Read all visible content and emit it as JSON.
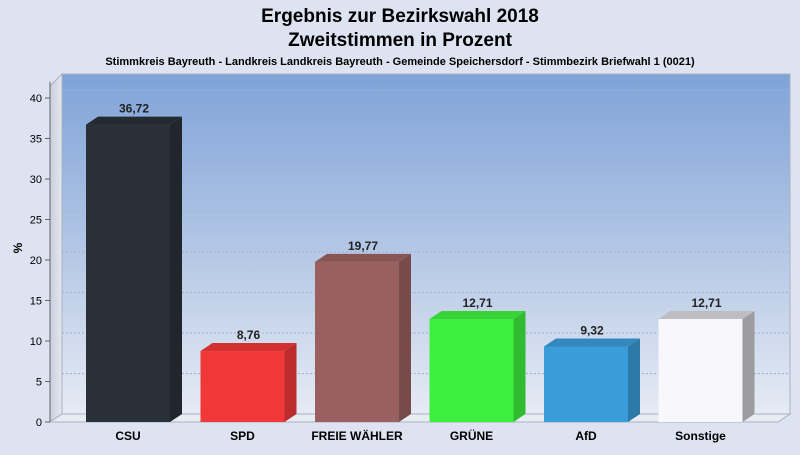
{
  "chart_data": {
    "type": "bar",
    "title": "Ergebnis zur Bezirkswahl 2018",
    "subtitle": "Zweitstimmen in Prozent",
    "caption": "Stimmkreis Bayreuth - Landkreis Landkreis Bayreuth - Gemeinde Speichersdorf - Stimmbezirk Briefwahl 1 (0021)",
    "ylabel": "%",
    "xlabel": "",
    "ylim": [
      0,
      42
    ],
    "yticks": [
      0,
      5,
      10,
      15,
      20,
      25,
      30,
      35,
      40
    ],
    "grid": true,
    "legend": "none",
    "categories": [
      "CSU",
      "SPD",
      "FREIE WÄHLER",
      "GRÜNE",
      "AfD",
      "Sonstige"
    ],
    "values": [
      36.72,
      8.76,
      19.77,
      12.71,
      9.32,
      12.71
    ],
    "value_labels": [
      "36,72",
      "8,76",
      "19,77",
      "12,71",
      "9,32",
      "12,71"
    ],
    "colors": [
      "#2a3038",
      "#f03838",
      "#9a6060",
      "#3ef03e",
      "#3a9cd8",
      "#f8f8fc"
    ]
  }
}
